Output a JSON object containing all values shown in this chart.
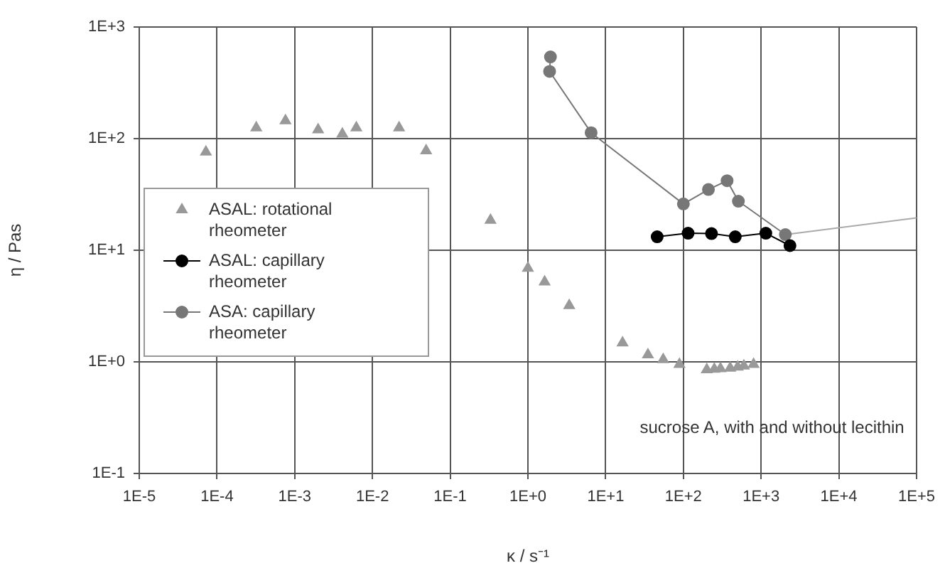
{
  "chart_data": {
    "type": "line",
    "xlabel": "κ / s⁻¹",
    "ylabel": "η / Pas",
    "log": "xy",
    "grid": true,
    "legend": "left",
    "xlim": [
      1e-05,
      100000
    ],
    "ylim": [
      0.1,
      1000
    ],
    "xticks": [
      {
        "value": 1e-05,
        "label": "1E-5"
      },
      {
        "value": 0.0001,
        "label": "1E-4"
      },
      {
        "value": 0.001,
        "label": "1E-3"
      },
      {
        "value": 0.01,
        "label": "1E-2"
      },
      {
        "value": 0.1,
        "label": "1E-1"
      },
      {
        "value": 1,
        "label": "1E+0"
      },
      {
        "value": 10,
        "label": "1E+1"
      },
      {
        "value": 100,
        "label": "1E+2"
      },
      {
        "value": 1000,
        "label": "1E+3"
      },
      {
        "value": 10000,
        "label": "1E+4"
      },
      {
        "value": 100000,
        "label": "1E+5"
      }
    ],
    "yticks": [
      {
        "value": 0.1,
        "label": "1E-1"
      },
      {
        "value": 1,
        "label": "1E+0"
      },
      {
        "value": 10,
        "label": "1E+1"
      },
      {
        "value": 100,
        "label": "1E+2"
      },
      {
        "value": 1000,
        "label": "1E+3"
      }
    ],
    "series": [
      {
        "name": "ASAL: rotational rheometer",
        "type": "scatter",
        "marker": "triangle",
        "color": "#999999",
        "x": [
          7.2e-05,
          0.00032,
          0.00076,
          0.002,
          0.0041,
          0.0062,
          0.022,
          0.049,
          0.33,
          1.0,
          1.64,
          3.4,
          16.5,
          35,
          55,
          89,
          200,
          250,
          300,
          400,
          500,
          600,
          800
        ],
        "values": [
          76,
          125,
          145,
          120,
          110,
          125,
          125,
          78,
          18.6,
          6.9,
          5.2,
          3.2,
          1.48,
          1.16,
          1.05,
          0.95,
          0.85,
          0.86,
          0.87,
          0.88,
          0.9,
          0.92,
          0.95
        ]
      },
      {
        "name": "ASAL: capillary rheometer",
        "type": "line",
        "marker": "circle",
        "color": "#000000",
        "x": [
          46,
          115,
          230,
          465,
          1150,
          2350
        ],
        "values": [
          13.2,
          14.2,
          14.1,
          13.2,
          14.2,
          11
        ]
      },
      {
        "name": "ASA: capillary rheometer",
        "type": "line",
        "marker": "circle",
        "color": "#777777",
        "x": [
          1.95,
          1.9,
          6.5,
          100,
          210,
          365,
          510,
          2050
        ],
        "values": [
          540,
          400,
          113,
          26,
          35,
          42,
          27.5,
          13.8
        ]
      },
      {
        "type": "line",
        "marker": "none",
        "color": "#aaaaaa",
        "x": [
          2050,
          100000
        ],
        "values": [
          13.8,
          19.5
        ]
      }
    ],
    "annotations": [
      "sucrose A, with and without lecithin"
    ]
  }
}
